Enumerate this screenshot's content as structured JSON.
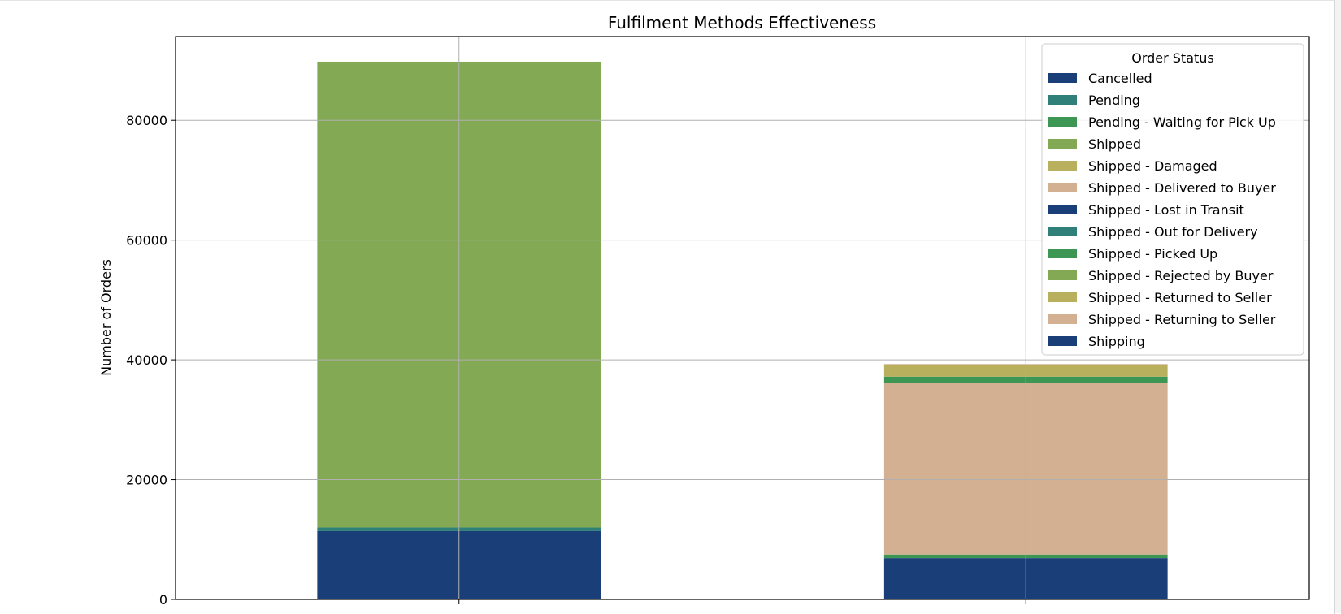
{
  "chart_data": {
    "type": "bar",
    "stacked": true,
    "title": "Fulfilment Methods Effectiveness",
    "xlabel": "",
    "ylabel": "Number of Orders",
    "ylim": [
      0,
      94000
    ],
    "yticks": [
      0,
      20000,
      40000,
      60000,
      80000
    ],
    "ytick_labels": [
      "0",
      "20000",
      "40000",
      "60000",
      "80000"
    ],
    "grid": true,
    "legend_title": "Order Status",
    "legend_position": "top-right",
    "categories": [
      "",
      ""
    ],
    "series": [
      {
        "name": "Cancelled",
        "color": "#1a3f78",
        "values": [
          11400,
          6900
        ]
      },
      {
        "name": "Pending",
        "color": "#2e8079",
        "values": [
          600,
          0
        ]
      },
      {
        "name": "Pending - Waiting for Pick Up",
        "color": "#3d9654",
        "values": [
          0,
          600
        ]
      },
      {
        "name": "Shipped",
        "color": "#83a955",
        "values": [
          77800,
          0
        ]
      },
      {
        "name": "Shipped - Damaged",
        "color": "#b8b05c",
        "values": [
          0,
          0
        ]
      },
      {
        "name": "Shipped - Delivered to Buyer",
        "color": "#d3b092",
        "values": [
          0,
          28700
        ]
      },
      {
        "name": "Shipped - Lost in Transit",
        "color": "#1a3f78",
        "values": [
          0,
          0
        ]
      },
      {
        "name": "Shipped - Out for Delivery",
        "color": "#2e8079",
        "values": [
          0,
          0
        ]
      },
      {
        "name": "Shipped - Picked Up",
        "color": "#3d9654",
        "values": [
          0,
          1000
        ]
      },
      {
        "name": "Shipped - Rejected by Buyer",
        "color": "#83a955",
        "values": [
          0,
          0
        ]
      },
      {
        "name": "Shipped - Returned to Seller",
        "color": "#b8b05c",
        "values": [
          0,
          2000
        ]
      },
      {
        "name": "Shipped - Returning to Seller",
        "color": "#d3b092",
        "values": [
          0,
          100
        ]
      },
      {
        "name": "Shipping",
        "color": "#1a3f78",
        "values": [
          0,
          0
        ]
      }
    ]
  }
}
